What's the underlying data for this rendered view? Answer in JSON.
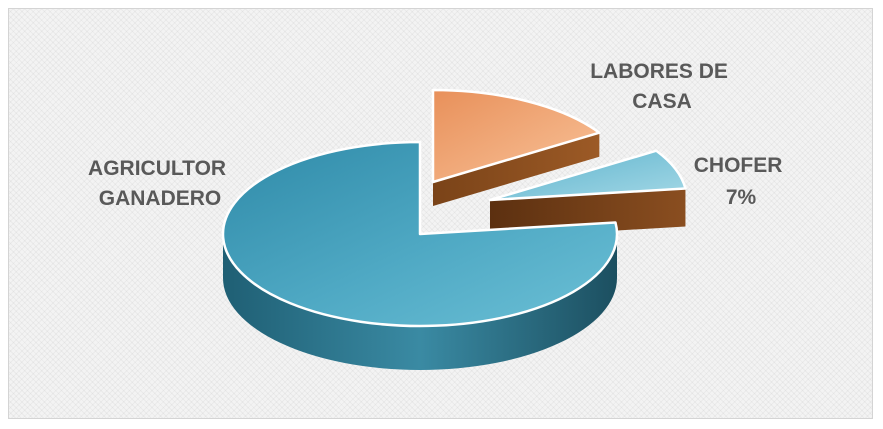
{
  "chart_data": {
    "type": "pie",
    "style": "3d-exploded",
    "slices": [
      {
        "label_lines": [
          "AGRICULTOR",
          "GANADERO"
        ],
        "value_text": "",
        "value": 77,
        "top_color": "#4fa7c2",
        "side_color": "#2b6f86"
      },
      {
        "label_lines": [
          "LABORES DE",
          "CASA"
        ],
        "value_text": "",
        "value": 16,
        "top_color": "#f4a772",
        "side_color": "#8a4e22"
      },
      {
        "label_lines": [
          "CHOFER"
        ],
        "value_text": "7%",
        "value": 7,
        "top_color": "#7fc4d8",
        "side_color": "#6b3a14"
      }
    ]
  }
}
